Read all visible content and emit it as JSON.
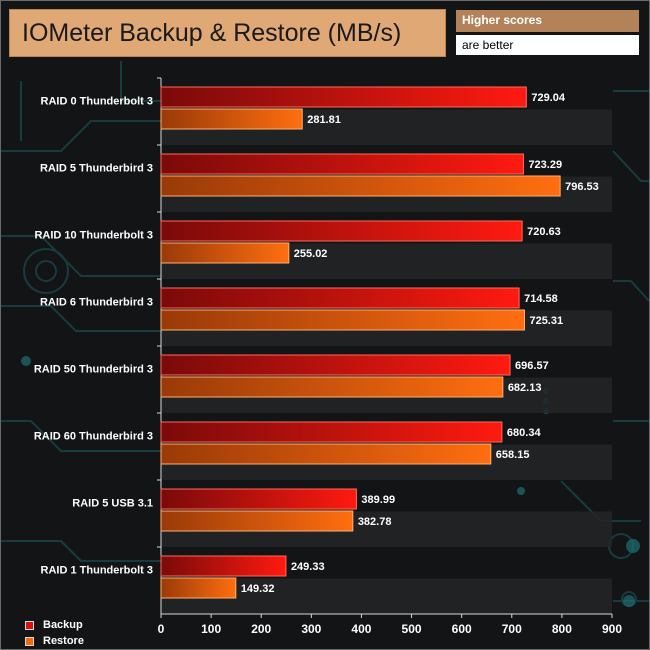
{
  "header": {
    "title": "IOMeter Backup & Restore (MB/s)",
    "note_line1": "Higher scores",
    "note_line2": "are better"
  },
  "colors": {
    "background": "#121416",
    "title_box": "#e0a874",
    "note_box": "#b48258",
    "backup": "#e01010",
    "restore": "#f06a0a",
    "circuit": "#1f6e72"
  },
  "chart_data": {
    "type": "bar",
    "orientation": "horizontal",
    "title": "IOMeter Backup & Restore (MB/s)",
    "categories": [
      "RAID 0 Thunderbolt 3",
      "RAID 5 Thunderbird 3",
      "RAID 10 Thunderbolt 3",
      "RAID 6 Thunderbird 3",
      "RAID 50 Thunderbird 3",
      "RAID 60 Thunderbird 3",
      "RAID 5 USB 3.1",
      "RAID 1 Thunderbolt 3"
    ],
    "series": [
      {
        "name": "Backup",
        "color": "#e01010",
        "values": [
          729.04,
          723.29,
          720.63,
          714.58,
          696.57,
          680.34,
          389.99,
          249.33
        ]
      },
      {
        "name": "Restore",
        "color": "#f06a0a",
        "values": [
          281.81,
          796.53,
          255.02,
          725.31,
          682.13,
          658.15,
          382.78,
          149.32
        ]
      }
    ],
    "value_labels": [
      [
        "729.04",
        "723.29",
        "720.63",
        "714.58",
        "696.57",
        "680.34",
        "389.99",
        "249.33"
      ],
      [
        "281.81",
        "796.53",
        "255.02",
        "725.31",
        "682.13",
        "658.15",
        "382.78",
        "149.32"
      ]
    ],
    "xlim": [
      0,
      900
    ],
    "xticks": [
      "0",
      "100",
      "200",
      "300",
      "400",
      "500",
      "600",
      "700",
      "800",
      "900"
    ],
    "xlabel": "",
    "ylabel": "",
    "legend": {
      "position": "bottom-left",
      "entries": [
        "Backup",
        "Restore"
      ]
    },
    "grid": false
  }
}
